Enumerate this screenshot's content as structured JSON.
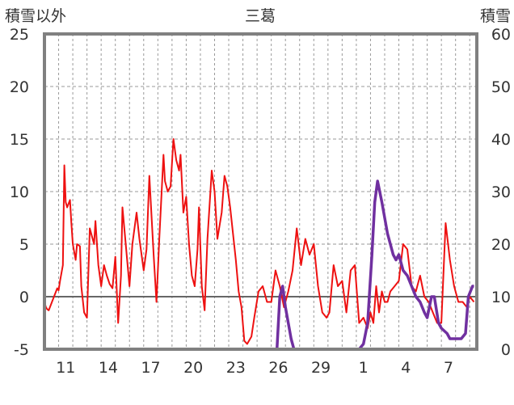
{
  "chart_data": {
    "type": "line",
    "title": "三葛",
    "y1label": "積雪以外",
    "y2label": "積雪",
    "y1lim": [
      -5,
      25
    ],
    "y1ticks": [
      -5,
      0,
      5,
      10,
      15,
      20,
      25
    ],
    "y2lim": [
      0,
      60
    ],
    "y2ticks": [
      0,
      10,
      20,
      30,
      40,
      50,
      60
    ],
    "xlim": [
      0,
      30.5
    ],
    "x_tick_labels": [
      {
        "x": 1.5,
        "label": "11"
      },
      {
        "x": 4.5,
        "label": "14"
      },
      {
        "x": 7.5,
        "label": "17"
      },
      {
        "x": 10.5,
        "label": "20"
      },
      {
        "x": 13.5,
        "label": "23"
      },
      {
        "x": 16.5,
        "label": "26"
      },
      {
        "x": 19.5,
        "label": "29"
      },
      {
        "x": 22.5,
        "label": "1"
      },
      {
        "x": 25.5,
        "label": "4"
      },
      {
        "x": 28.5,
        "label": "7"
      }
    ],
    "grid": {
      "vertical": "dashed-daily",
      "horizontal": "dashed"
    },
    "colors": {
      "temperature": "#ee1111",
      "snow": "#7030a0",
      "zero_line": "#666666",
      "frame": "#808080"
    },
    "series": [
      {
        "axis": "left",
        "x": [
          0.0,
          0.1,
          0.2,
          0.3,
          0.9,
          1.0,
          1.1,
          1.3,
          1.4,
          1.5,
          1.6,
          1.8,
          1.9,
          2.0,
          2.2,
          2.3,
          2.5,
          2.6,
          2.8,
          3.0,
          3.2,
          3.5,
          3.6,
          3.8,
          4.0,
          4.2,
          4.4,
          4.6,
          4.8,
          5.0,
          5.2,
          5.4,
          5.5,
          5.7,
          6.0,
          6.2,
          6.5,
          6.7,
          7.0,
          7.2,
          7.4,
          7.7,
          7.9,
          8.1,
          8.4,
          8.5,
          8.7,
          8.9,
          9.1,
          9.3,
          9.5,
          9.6,
          9.8,
          10.0,
          10.2,
          10.4,
          10.6,
          10.8,
          10.9,
          11.1,
          11.3,
          11.5,
          11.8,
          12.0,
          12.2,
          12.5,
          12.7,
          12.9,
          13.1,
          13.3,
          13.5,
          13.7,
          13.9,
          14.1,
          14.3,
          14.6,
          14.8,
          15.1,
          15.4,
          15.7,
          16.0,
          16.3,
          16.6,
          16.9,
          17.2,
          17.5,
          17.8,
          18.1,
          18.4,
          18.7,
          19.0,
          19.3,
          19.6,
          19.9,
          20.1,
          20.4,
          20.7,
          21.0,
          21.3,
          21.6,
          21.9,
          22.2,
          22.5,
          22.8,
          23.0,
          23.2,
          23.4,
          23.6,
          23.8,
          24.0,
          24.2,
          24.4,
          24.7,
          25.0,
          25.3,
          25.6,
          25.9,
          26.2,
          26.5,
          26.8,
          27.1,
          27.4,
          27.7,
          28.0,
          28.3,
          28.6,
          28.9,
          29.2,
          29.5,
          29.8,
          30.0,
          30.3
        ],
        "values": [
          -0.5,
          -1.0,
          -1.2,
          -1.3,
          0.8,
          0.6,
          1.5,
          3.0,
          12.5,
          9.0,
          8.5,
          9.2,
          7.0,
          5.0,
          3.5,
          5.0,
          4.8,
          1.0,
          -1.5,
          -2.0,
          6.5,
          5.0,
          7.2,
          3.0,
          1.0,
          3.0,
          2.0,
          1.2,
          0.8,
          3.8,
          -2.5,
          2.0,
          8.5,
          5.5,
          1.0,
          5.0,
          8.0,
          5.5,
          2.5,
          4.5,
          11.5,
          4.0,
          -0.5,
          5.5,
          13.5,
          11.0,
          10.0,
          10.5,
          15.0,
          13.0,
          12.0,
          13.5,
          8.0,
          9.5,
          5.0,
          2.0,
          1.0,
          4.5,
          8.5,
          1.0,
          -1.3,
          5.5,
          12.0,
          10.0,
          5.5,
          8.0,
          11.5,
          10.5,
          8.5,
          6.0,
          3.5,
          0.5,
          -1.0,
          -4.2,
          -4.5,
          -3.8,
          -2.0,
          0.5,
          1.0,
          -0.5,
          -0.5,
          2.5,
          1.0,
          -1.0,
          0.5,
          2.5,
          6.5,
          3.0,
          5.5,
          4.0,
          5.0,
          1.0,
          -1.5,
          -2.0,
          -1.5,
          3.0,
          1.0,
          1.5,
          -1.5,
          2.5,
          3.0,
          -2.5,
          -2.0,
          -3.0,
          -1.5,
          -2.5,
          1.0,
          -1.5,
          0.5,
          -0.5,
          -0.5,
          0.5,
          1.0,
          1.5,
          5.0,
          4.5,
          1.0,
          0.5,
          2.0,
          0.0,
          -0.5,
          -1.5,
          -2.5,
          -2.5,
          7.0,
          3.5,
          1.0,
          -0.5,
          -0.5,
          -1.0,
          0.0,
          -0.5
        ]
      },
      {
        "axis": "right",
        "x": [
          0.0,
          14.5,
          15.2,
          15.6,
          16.1,
          16.4,
          16.6,
          16.8,
          17.0,
          17.4,
          17.6,
          22.2,
          22.5,
          22.8,
          23.1,
          23.3,
          23.5,
          23.8,
          24.0,
          24.2,
          24.4,
          24.6,
          24.8,
          25.0,
          25.3,
          25.6,
          25.9,
          26.2,
          26.5,
          26.8,
          27.0,
          27.3,
          27.5,
          27.8,
          28.0,
          28.4,
          28.6,
          29.0,
          29.4,
          29.7,
          29.9,
          30.2,
          30.3
        ],
        "values": [
          0,
          0,
          0,
          0,
          0,
          0,
          10,
          12,
          8,
          2,
          0,
          0,
          1,
          5,
          18,
          28,
          32,
          28,
          25,
          22,
          20,
          18,
          17,
          18,
          15,
          14,
          12,
          10,
          9,
          7,
          6,
          10,
          10,
          5,
          4,
          3,
          2,
          2,
          2,
          3,
          10,
          12,
          12
        ]
      }
    ]
  }
}
